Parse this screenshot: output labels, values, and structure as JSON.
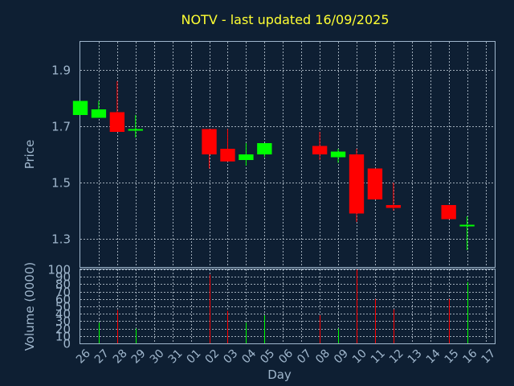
{
  "chart_data": [
    {
      "type": "candlestick",
      "title": "NOTV - last updated 16/09/2025",
      "ylabel": "Price",
      "ylim": [
        1.2,
        2.0
      ],
      "yticks": [
        "1.3",
        "1.5",
        "1.7",
        "1.9"
      ],
      "grid": true,
      "colors": {
        "up": "#00ff00",
        "down": "#ff0000"
      },
      "candles": [
        {
          "day": "26",
          "open": 1.74,
          "close": 1.79,
          "high": 1.79,
          "low": 1.74
        },
        {
          "day": "27",
          "open": 1.73,
          "close": 1.76,
          "high": 1.79,
          "low": 1.73
        },
        {
          "day": "28",
          "open": 1.75,
          "close": 1.68,
          "high": 1.86,
          "low": 1.68
        },
        {
          "day": "29",
          "open": 1.685,
          "close": 1.69,
          "high": 1.74,
          "low": 1.66
        },
        {
          "day": "02",
          "open": 1.69,
          "close": 1.6,
          "high": 1.69,
          "low": 1.55
        },
        {
          "day": "03",
          "open": 1.62,
          "close": 1.575,
          "high": 1.69,
          "low": 1.575
        },
        {
          "day": "04",
          "open": 1.58,
          "close": 1.6,
          "high": 1.64,
          "low": 1.56
        },
        {
          "day": "05",
          "open": 1.6,
          "close": 1.64,
          "high": 1.64,
          "low": 1.59
        },
        {
          "day": "08",
          "open": 1.63,
          "close": 1.6,
          "high": 1.68,
          "low": 1.58
        },
        {
          "day": "09",
          "open": 1.59,
          "close": 1.61,
          "high": 1.62,
          "low": 1.57
        },
        {
          "day": "10",
          "open": 1.6,
          "close": 1.39,
          "high": 1.62,
          "low": 1.36
        },
        {
          "day": "11",
          "open": 1.55,
          "close": 1.44,
          "high": 1.55,
          "low": 1.44
        },
        {
          "day": "12",
          "open": 1.42,
          "close": 1.41,
          "high": 1.5,
          "low": 1.4
        },
        {
          "day": "15",
          "open": 1.42,
          "close": 1.37,
          "high": 1.42,
          "low": 1.37
        },
        {
          "day": "16",
          "open": 1.345,
          "close": 1.35,
          "high": 1.38,
          "low": 1.26
        }
      ]
    },
    {
      "type": "bar",
      "ylabel": "Volume (0000)",
      "xlabel": "Day",
      "ylim": [
        0,
        100
      ],
      "yticks": [
        "0",
        "10",
        "20",
        "30",
        "40",
        "50",
        "60",
        "70",
        "80",
        "90",
        "100"
      ],
      "categories": [
        "26",
        "27",
        "28",
        "29",
        "30",
        "31",
        "01",
        "02",
        "03",
        "04",
        "05",
        "06",
        "07",
        "08",
        "09",
        "10",
        "11",
        "12",
        "13",
        "14",
        "15",
        "16",
        "17"
      ],
      "values": [
        0,
        28,
        45,
        20,
        0,
        0,
        0,
        93,
        44,
        28,
        38,
        0,
        0,
        38,
        20,
        100,
        60,
        46,
        0,
        0,
        60,
        83,
        0
      ],
      "bar_colors": [
        "",
        "#00ff00",
        "#ff0000",
        "#00ff00",
        "",
        "",
        "",
        "#ff0000",
        "#ff0000",
        "#00ff00",
        "#00ff00",
        "",
        "",
        "#ff0000",
        "#00ff00",
        "#ff0000",
        "#ff0000",
        "#ff0000",
        "",
        "",
        "#ff0000",
        "#00ff00",
        ""
      ]
    }
  ]
}
